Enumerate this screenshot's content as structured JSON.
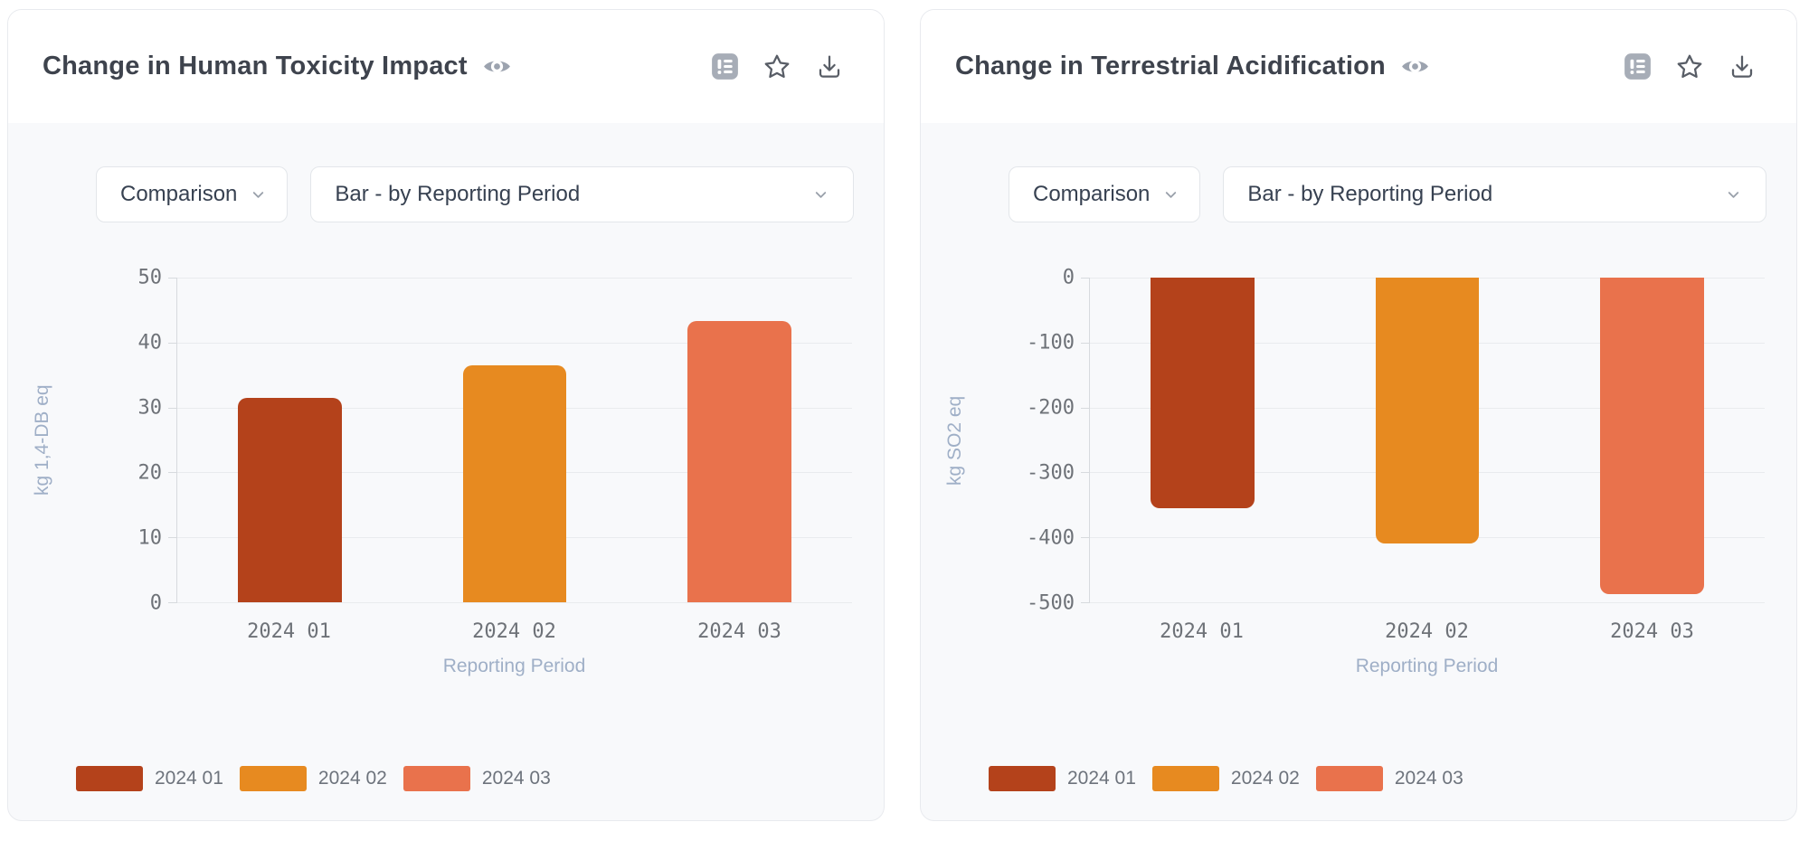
{
  "page": {
    "background": "#ffffff"
  },
  "palette": {
    "bar_colors": [
      "#b4421b",
      "#e78a20",
      "#e9724c"
    ],
    "card_background": "#f8f9fb",
    "card_header_background": "#ffffff",
    "card_border": "#e8eaee",
    "title_color": "#3e434d",
    "tick_text_color": "#6e7278",
    "axis_title_color": "#9fafc7",
    "gridline_color": "#e9ebee",
    "axis_line_color": "#d7dade",
    "legend_text_color": "#6d737c",
    "muted_icon_color": "#9ca3af",
    "toolbar_icon_color": "#585d66"
  },
  "cards": [
    {
      "title": "Change in Human Toxicity Impact",
      "title_icon": "eye-icon",
      "toolbar": {
        "icons": [
          "list-details-icon",
          "star-icon",
          "download-icon"
        ]
      },
      "controls": {
        "comparison": {
          "value": "Comparison",
          "icon": "chevron-down-icon"
        },
        "chart_type": {
          "value": "Bar - by Reporting Period",
          "icon": "chevron-down-icon"
        }
      },
      "chart_data": {
        "type": "bar",
        "categories": [
          "2024 01",
          "2024 02",
          "2024 03"
        ],
        "values": [
          31.5,
          36.5,
          43.3
        ],
        "colors": [
          "#b4421b",
          "#e78a20",
          "#e9724c"
        ],
        "xlabel": "Reporting Period",
        "ylabel": "kg 1,4-DB eq",
        "ylim": [
          0,
          50
        ],
        "yticks": [
          50,
          40,
          30,
          20,
          10,
          0
        ],
        "grid": true,
        "legend": [
          "2024 01",
          "2024 02",
          "2024 03"
        ],
        "legend_position": "bottom"
      }
    },
    {
      "title": "Change in Terrestrial Acidification",
      "title_icon": "eye-icon",
      "toolbar": {
        "icons": [
          "list-details-icon",
          "star-icon",
          "download-icon"
        ]
      },
      "controls": {
        "comparison": {
          "value": "Comparison",
          "icon": "chevron-down-icon"
        },
        "chart_type": {
          "value": "Bar - by Reporting Period",
          "icon": "chevron-down-icon"
        }
      },
      "chart_data": {
        "type": "bar",
        "categories": [
          "2024 01",
          "2024 02",
          "2024 03"
        ],
        "values": [
          -355,
          -410,
          -487
        ],
        "colors": [
          "#b4421b",
          "#e78a20",
          "#e9724c"
        ],
        "xlabel": "Reporting Period",
        "ylabel": "kg SO2 eq",
        "ylim": [
          -500,
          0
        ],
        "yticks": [
          0,
          -100,
          -200,
          -300,
          -400,
          -500
        ],
        "grid": true,
        "legend": [
          "2024 01",
          "2024 02",
          "2024 03"
        ],
        "legend_position": "bottom"
      }
    }
  ]
}
